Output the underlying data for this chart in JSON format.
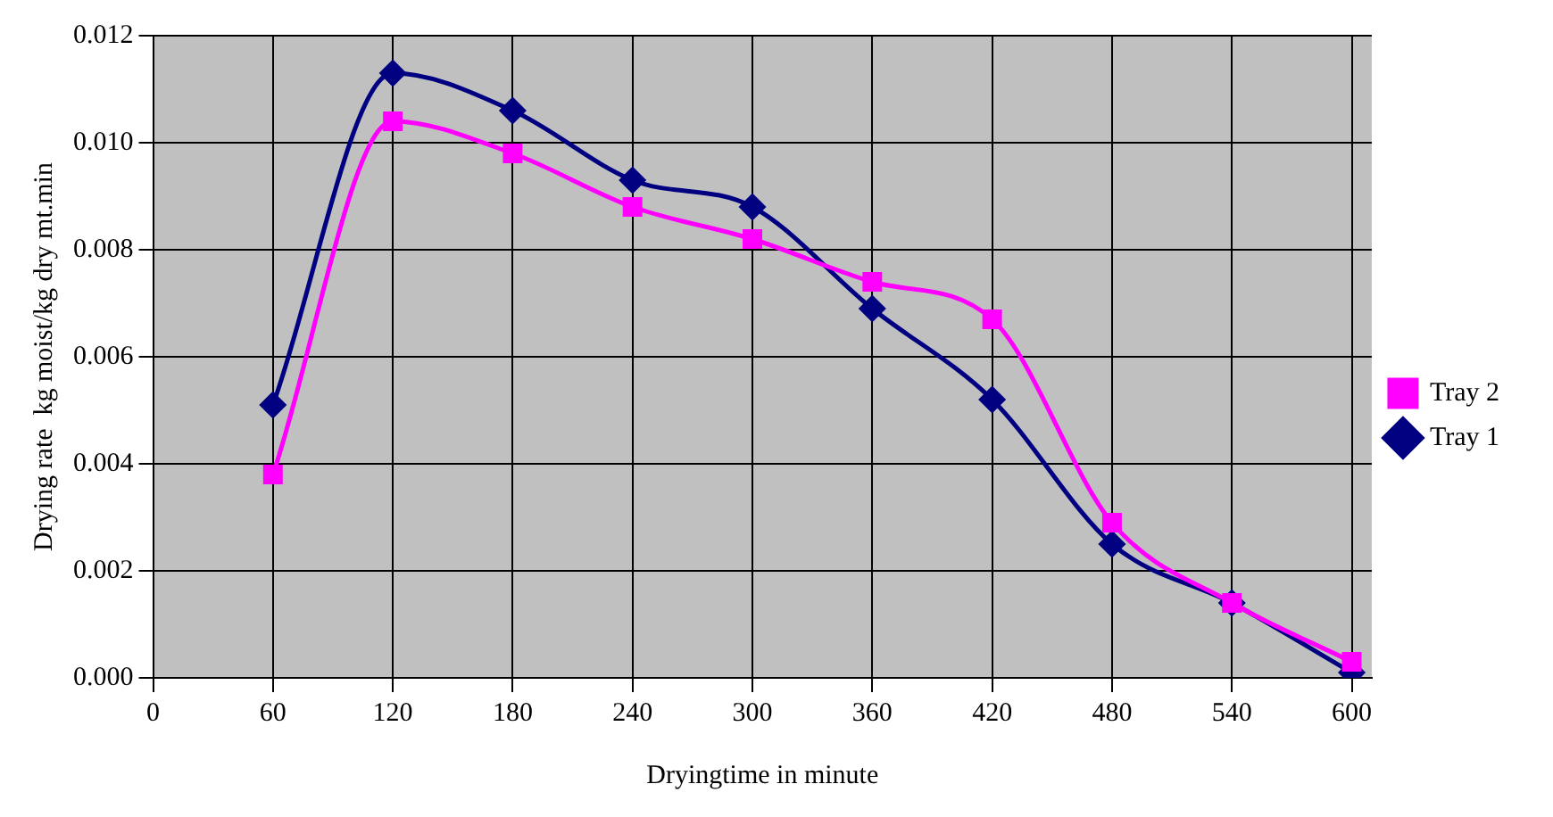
{
  "chart_data": {
    "type": "line",
    "xlabel": "Dryingtime in minute",
    "ylabel": "Drying rate  kg moist/kg dry mt.min",
    "x": [
      60,
      120,
      180,
      240,
      300,
      360,
      420,
      480,
      540,
      600
    ],
    "series": [
      {
        "name": "Tray 1",
        "color": "#000080",
        "marker": "diamond",
        "values": [
          0.0051,
          0.0113,
          0.0106,
          0.0093,
          0.0088,
          0.0069,
          0.0052,
          0.0025,
          0.0014,
          0.0001
        ]
      },
      {
        "name": "Tray 2",
        "color": "#ff00ff",
        "marker": "square",
        "values": [
          0.0038,
          0.0104,
          0.0098,
          0.0088,
          0.0082,
          0.0074,
          0.0067,
          0.0029,
          0.0014,
          0.0003
        ]
      }
    ],
    "xlim": [
      0,
      610
    ],
    "xticks": [
      0,
      60,
      120,
      180,
      240,
      300,
      360,
      420,
      480,
      540,
      600
    ],
    "ylim": [
      0,
      0.012
    ],
    "yticks": [
      {
        "value": 0,
        "label": "0.000"
      },
      {
        "value": 0.002,
        "label": "0.002"
      },
      {
        "value": 0.004,
        "label": "0.004"
      },
      {
        "value": 0.006,
        "label": "0.006"
      },
      {
        "value": 0.008,
        "label": "0.008"
      },
      {
        "value": 0.01,
        "label": "0.010"
      },
      {
        "value": 0.012,
        "label": "0.012"
      }
    ],
    "grid": true,
    "legend": "right",
    "line_style": "solid"
  }
}
